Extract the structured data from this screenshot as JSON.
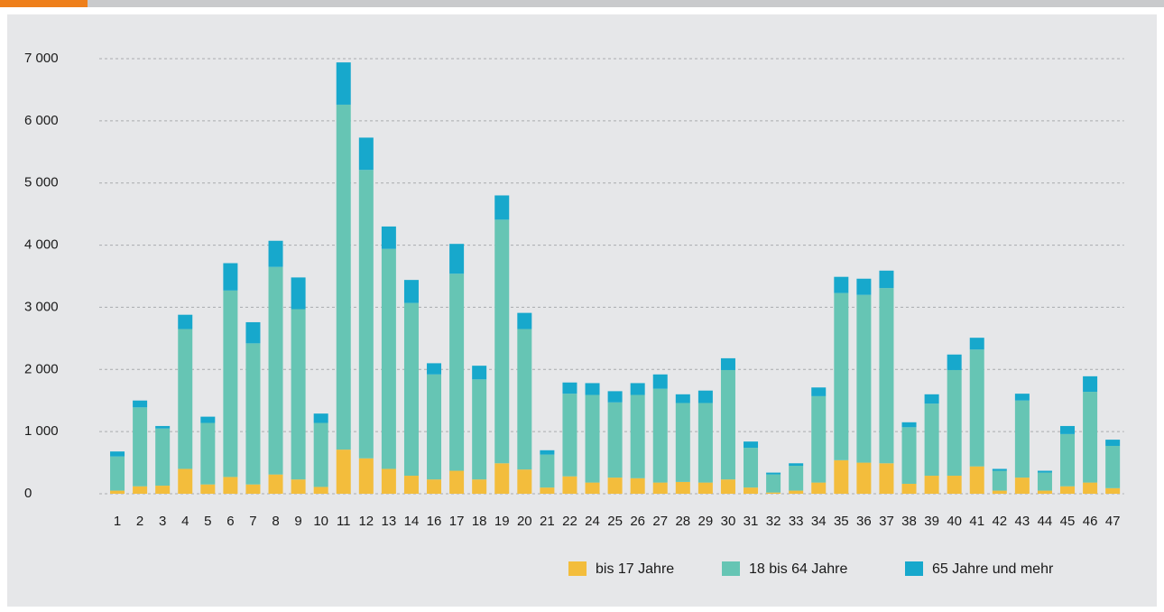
{
  "chart_data": {
    "type": "stacked_bar",
    "categories": [
      "1",
      "2",
      "3",
      "4",
      "5",
      "6",
      "7",
      "8",
      "9",
      "10",
      "11",
      "12",
      "13",
      "14",
      "16",
      "17",
      "18",
      "19",
      "20",
      "21",
      "22",
      "24",
      "25",
      "26",
      "27",
      "28",
      "29",
      "30",
      "31",
      "32",
      "33",
      "34",
      "35",
      "36",
      "37",
      "38",
      "39",
      "40",
      "41",
      "42",
      "43",
      "44",
      "45",
      "46",
      "47"
    ],
    "series": [
      {
        "name": "bis 17 Jahre",
        "color": "#f3bd3c",
        "values": [
          50,
          120,
          130,
          400,
          150,
          270,
          150,
          310,
          230,
          110,
          710,
          570,
          400,
          290,
          230,
          370,
          230,
          490,
          390,
          100,
          280,
          180,
          260,
          250,
          180,
          190,
          180,
          230,
          100,
          20,
          50,
          180,
          540,
          500,
          490,
          160,
          290,
          290,
          440,
          50,
          260,
          50,
          120,
          180,
          90
        ]
      },
      {
        "name": "18 bis 64 Jahre",
        "color": "#66c5b4",
        "values": [
          550,
          1270,
          920,
          2250,
          990,
          3000,
          2270,
          3340,
          2740,
          1030,
          5550,
          4640,
          3540,
          2780,
          1690,
          3170,
          1610,
          3920,
          2260,
          530,
          1330,
          1410,
          1210,
          1340,
          1510,
          1270,
          1280,
          1760,
          640,
          290,
          400,
          1390,
          2690,
          2700,
          2820,
          910,
          1160,
          1700,
          1880,
          320,
          1240,
          290,
          840,
          1460,
          680
        ]
      },
      {
        "name": "65 Jahre und mehr",
        "color": "#17a8cc",
        "values": [
          80,
          110,
          40,
          230,
          100,
          440,
          340,
          420,
          510,
          150,
          680,
          520,
          360,
          370,
          180,
          480,
          220,
          390,
          260,
          70,
          180,
          190,
          180,
          190,
          230,
          140,
          200,
          190,
          100,
          30,
          40,
          140,
          260,
          260,
          280,
          80,
          150,
          250,
          190,
          30,
          110,
          30,
          130,
          250,
          100
        ]
      }
    ],
    "ylim": [
      0,
      7000
    ],
    "yticks": [
      0,
      {
        "value": 1000,
        "label": "1 000"
      },
      {
        "value": 2000,
        "label": "2 000"
      },
      {
        "value": 3000,
        "label": "3 000"
      },
      {
        "value": 4000,
        "label": "4 000"
      },
      {
        "value": 5000,
        "label": "5 000"
      },
      {
        "value": 6000,
        "label": "6 000"
      },
      {
        "value": 7000,
        "label": "7 000"
      }
    ],
    "grid": true,
    "legend": "bottom-right"
  }
}
